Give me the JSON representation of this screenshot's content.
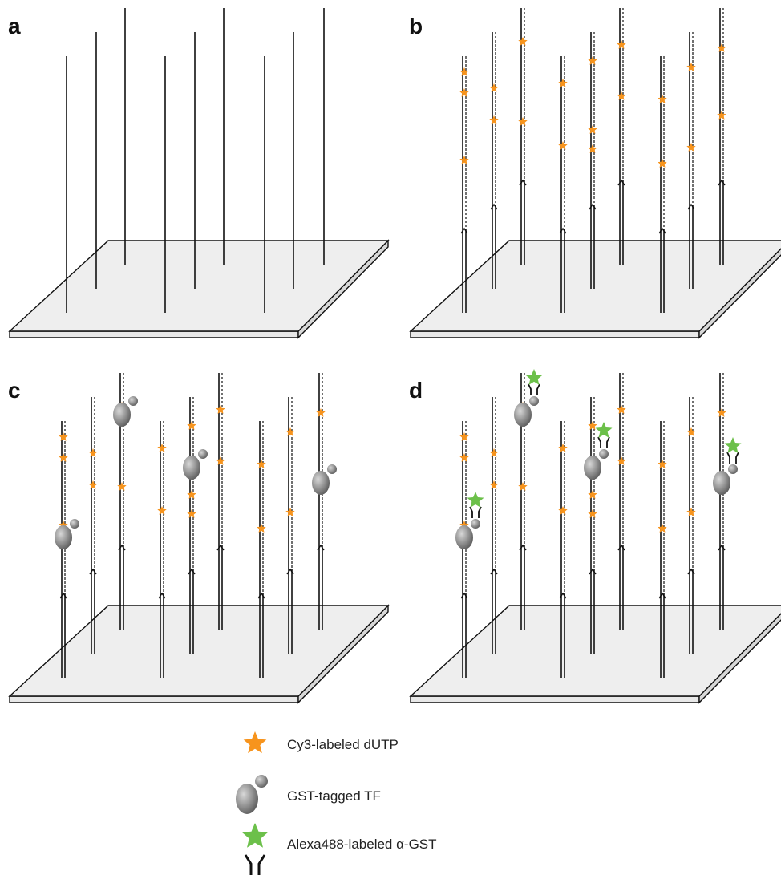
{
  "panels": [
    {
      "label": "a"
    },
    {
      "label": "b"
    },
    {
      "label": "c"
    },
    {
      "label": "d"
    }
  ],
  "legend": [
    {
      "label": "Cy3-labeled dUTP"
    },
    {
      "label": "GST-tagged TF"
    },
    {
      "label": "Alexa488-labeled α-GST"
    }
  ]
}
